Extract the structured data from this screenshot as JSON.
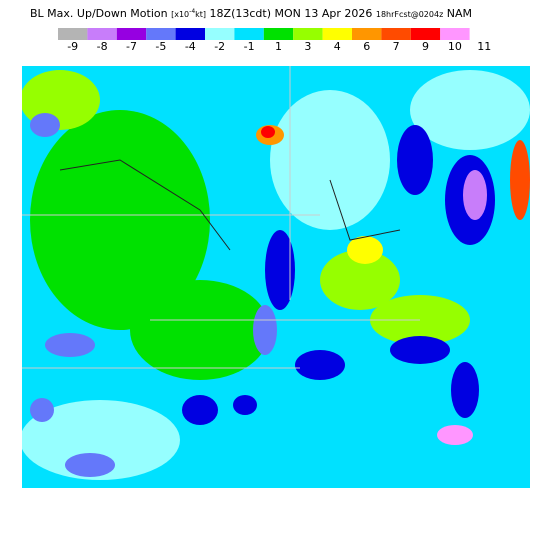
{
  "header": {
    "title": "BL Max. Up/Down Motion",
    "units": "[x10",
    "units_exp": "-4",
    "units_end": "kt]",
    "valid": "18Z(13cdt) MON 13 Apr 2026",
    "forecast": "18hrFcst@0204z",
    "model": "NAM"
  },
  "colorbar": {
    "labels": [
      -9,
      -8,
      -7,
      -5,
      -4,
      -2,
      -1,
      1,
      3,
      4,
      6,
      7,
      9,
      10,
      11
    ],
    "colors": [
      "#b4b4b4",
      "#c87dfa",
      "#9600e1",
      "#6478fa",
      "#0000e1",
      "#96ffff",
      "#00e1ff",
      "#00e100",
      "#96ff00",
      "#ffff00",
      "#ff9600",
      "#ff4b00",
      "#ff0000",
      "#ff96ff"
    ]
  }
}
